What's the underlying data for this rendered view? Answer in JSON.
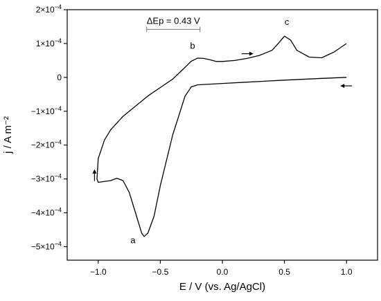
{
  "chart_data": {
    "type": "line",
    "xlabel": "E / V (vs. Ag/AgCl)",
    "ylabel": "j / A m⁻²",
    "xlim": [
      -1.25,
      1.25
    ],
    "ylim": [
      -0.00054,
      0.0002
    ],
    "x_ticks": [
      {
        "value": -1.0,
        "label": "−1.0"
      },
      {
        "value": -0.5,
        "label": "−0.5"
      },
      {
        "value": 0.0,
        "label": "0.0"
      },
      {
        "value": 0.5,
        "label": "0.5"
      },
      {
        "value": 1.0,
        "label": "1.0"
      }
    ],
    "y_ticks": [
      {
        "value": 0.0002,
        "mant": "2×10",
        "exp": "−4"
      },
      {
        "value": 0.0001,
        "mant": "1×10",
        "exp": "−4"
      },
      {
        "value": 0,
        "mant": "0",
        "exp": ""
      },
      {
        "value": -0.0001,
        "mant": "−1×10",
        "exp": "−4"
      },
      {
        "value": -0.0002,
        "mant": "−2×10",
        "exp": "−4"
      },
      {
        "value": -0.0003,
        "mant": "−3×10",
        "exp": "−4"
      },
      {
        "value": -0.0004,
        "mant": "−4×10",
        "exp": "−4"
      },
      {
        "value": -0.0005,
        "mant": "−5×10",
        "exp": "−4"
      }
    ],
    "grid": false,
    "legend": "none",
    "series": [
      {
        "x": [
          1.0,
          0.8,
          0.5,
          0.2,
          0.0,
          -0.2,
          -0.25,
          -0.3,
          -0.4,
          -0.5,
          -0.55,
          -0.6,
          -0.63,
          -0.65,
          -0.7,
          -0.75,
          -0.8,
          -0.85,
          -0.9,
          -1.0,
          -1.01,
          -1.0,
          -0.95,
          -0.9,
          -0.8,
          -0.7,
          -0.6,
          -0.5,
          -0.4,
          -0.3,
          -0.25,
          -0.2,
          -0.15,
          -0.1,
          -0.05,
          0.0,
          0.1,
          0.2,
          0.3,
          0.4,
          0.45,
          0.5,
          0.55,
          0.6,
          0.7,
          0.8,
          0.9,
          1.0
        ],
        "y": [
          0.0,
          -3e-06,
          -8e-06,
          -1.4e-05,
          -1.8e-05,
          -2.2e-05,
          -2.8e-05,
          -5.5e-05,
          -0.00017,
          -0.00032,
          -0.00041,
          -0.00046,
          -0.00047,
          -0.00046,
          -0.0004,
          -0.00034,
          -0.000305,
          -0.000298,
          -0.000305,
          -0.00031,
          -0.0003,
          -0.00024,
          -0.000185,
          -0.000155,
          -0.000115,
          -8.5e-05,
          -5.5e-05,
          -3e-05,
          -5e-06,
          3e-05,
          4.8e-05,
          5.7e-05,
          5.6e-05,
          5.2e-05,
          4.7e-05,
          4.7e-05,
          5e-05,
          5.6e-05,
          6.5e-05,
          8e-05,
          0.0001,
          0.000122,
          0.00011,
          8e-05,
          6e-05,
          5.8e-05,
          7.5e-05,
          0.0001
        ]
      }
    ],
    "annotations": {
      "peak_a": {
        "text": "a",
        "x": -0.72,
        "y": -0.00049
      },
      "peak_b": {
        "text": "b",
        "x": -0.24,
        "y": 8.5e-05
      },
      "peak_c": {
        "text": "c",
        "x": 0.52,
        "y": 0.000155
      },
      "delta_ep": {
        "text": "ΔEp = 0.43 V",
        "x_start": -0.61,
        "x_end": -0.18,
        "y": 0.000142
      }
    },
    "arrows": [
      {
        "name": "arrow-forward-upper",
        "x": 0.2,
        "y": 7e-05,
        "dir": "right"
      },
      {
        "name": "arrow-return-right",
        "x": 1.0,
        "y": -2.5e-05,
        "dir": "left"
      },
      {
        "name": "arrow-up-left",
        "x": -1.03,
        "y": -0.00029,
        "dir": "up"
      }
    ]
  }
}
